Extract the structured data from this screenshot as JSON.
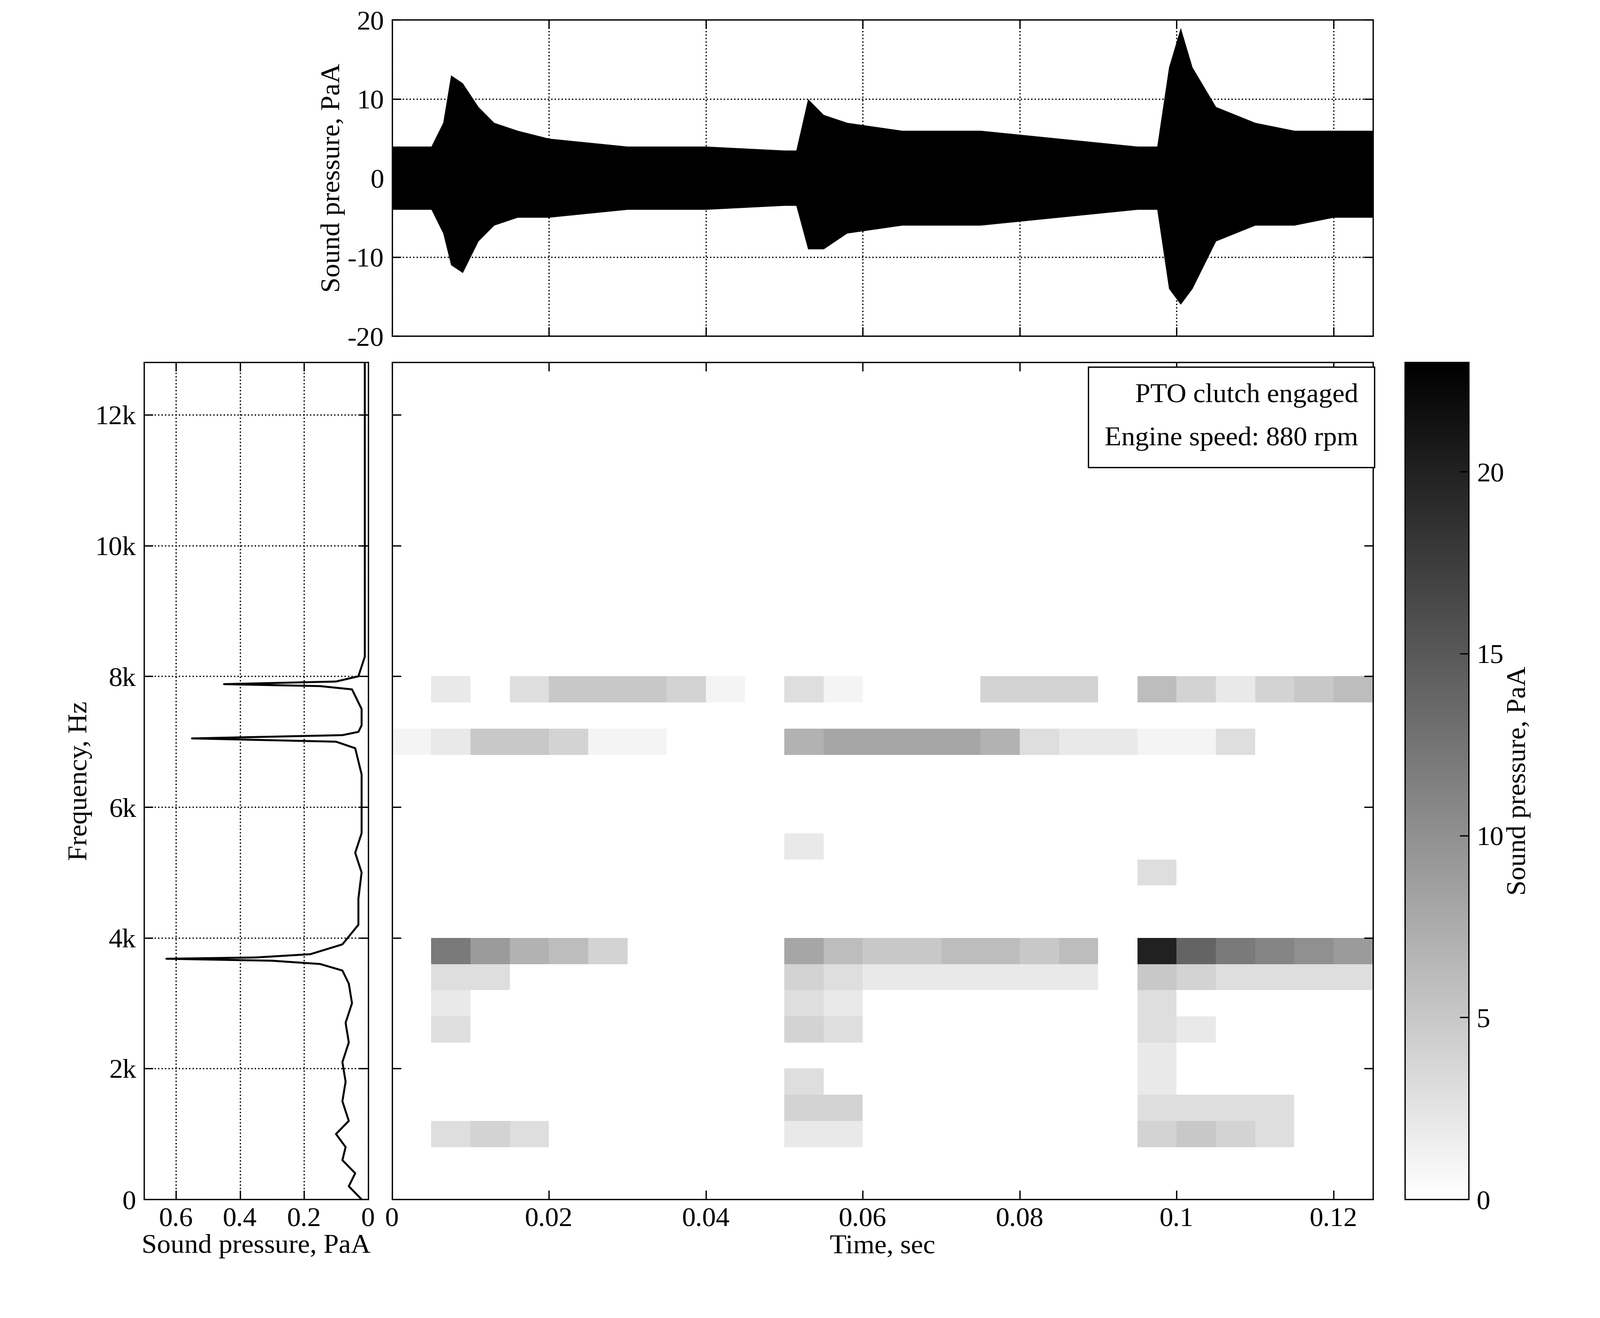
{
  "chart_data": [
    {
      "type": "area",
      "ylabel": "Sound pressure, PaA",
      "x": [
        0,
        0.005,
        0.0065,
        0.0075,
        0.009,
        0.011,
        0.013,
        0.016,
        0.02,
        0.03,
        0.04,
        0.05,
        0.0515,
        0.053,
        0.055,
        0.058,
        0.065,
        0.075,
        0.085,
        0.095,
        0.0975,
        0.099,
        0.1005,
        0.102,
        0.105,
        0.11,
        0.115,
        0.12,
        0.125
      ],
      "upper": [
        4,
        4,
        7,
        13,
        12,
        9,
        7,
        6,
        5,
        4,
        4,
        3.5,
        3.5,
        10,
        8,
        7,
        6,
        6,
        5,
        4,
        4,
        14,
        19,
        14,
        9,
        7,
        6,
        6,
        6
      ],
      "lower": [
        -4,
        -4,
        -7,
        -11,
        -12,
        -8,
        -6,
        -5,
        -5,
        -4,
        -4,
        -3.5,
        -3.5,
        -9,
        -9,
        -7,
        -6,
        -6,
        -5,
        -4,
        -4,
        -14,
        -16,
        -14,
        -8,
        -6,
        -6,
        -5,
        -5
      ],
      "color": "#000000",
      "xlim": [
        0,
        0.125
      ],
      "xticks": [
        0,
        0.02,
        0.04,
        0.06,
        0.08,
        0.1,
        0.12
      ],
      "ylim": [
        -20,
        20
      ],
      "yticks": [
        -20,
        -10,
        0,
        10,
        20
      ],
      "grid": true,
      "tick_labels": "y"
    },
    {
      "type": "line",
      "orientation": "horizontal",
      "xlabel": "Sound pressure, PaA",
      "ylabel": "Frequency, Hz",
      "x": [
        0,
        200,
        400,
        600,
        800,
        1000,
        1200,
        1500,
        1800,
        2100,
        2400,
        2700,
        3000,
        3300,
        3500,
        3600,
        3650,
        3680,
        3700,
        3750,
        3900,
        4200,
        4600,
        5000,
        5300,
        5600,
        6000,
        6500,
        6900,
        7000,
        7050,
        7100,
        7150,
        7250,
        7500,
        7800,
        7850,
        7880,
        7920,
        8000,
        8300,
        9000,
        10000,
        11000,
        12800
      ],
      "values": [
        0.02,
        0.06,
        0.04,
        0.08,
        0.07,
        0.1,
        0.06,
        0.08,
        0.07,
        0.08,
        0.06,
        0.07,
        0.05,
        0.06,
        0.08,
        0.15,
        0.3,
        0.63,
        0.35,
        0.18,
        0.08,
        0.03,
        0.03,
        0.02,
        0.04,
        0.02,
        0.02,
        0.02,
        0.04,
        0.1,
        0.55,
        0.08,
        0.03,
        0.02,
        0.02,
        0.05,
        0.15,
        0.45,
        0.1,
        0.03,
        0.01,
        0.01,
        0.01,
        0.01,
        0.01
      ],
      "color": "#000000",
      "xlim": [
        0.7,
        0
      ],
      "xticks": [
        0.6,
        0.4,
        0.2,
        0
      ],
      "ylim": [
        0,
        12800
      ],
      "yticks": [
        0,
        {
          "value": 2000,
          "label": "2k"
        },
        {
          "value": 4000,
          "label": "4k"
        },
        {
          "value": 6000,
          "label": "6k"
        },
        {
          "value": 8000,
          "label": "8k"
        },
        {
          "value": 10000,
          "label": "10k"
        },
        {
          "value": 12000,
          "label": "12k"
        }
      ],
      "grid": true
    },
    {
      "type": "heatmap",
      "xlabel": "Time, sec",
      "annotations": [
        "PTO clutch engaged",
        "Engine speed: 880 rpm"
      ],
      "time_bins": [
        0,
        0.005,
        0.01,
        0.015,
        0.02,
        0.025,
        0.03,
        0.035,
        0.04,
        0.045,
        0.05,
        0.055,
        0.06,
        0.065,
        0.07,
        0.075,
        0.08,
        0.085,
        0.09,
        0.095,
        0.1,
        0.105,
        0.11,
        0.115,
        0.12,
        0.125
      ],
      "frequency_bins": [
        0,
        400,
        800,
        1200,
        1600,
        2000,
        2400,
        2800,
        3200,
        3600,
        4000,
        4400,
        4800,
        5200,
        5600,
        6000,
        6400,
        6800,
        7200,
        7600,
        8000,
        8400,
        8800,
        9200,
        9600,
        10000,
        10400,
        10800,
        11200,
        11600,
        12000,
        12400,
        12800
      ],
      "cells": [
        [
          0,
          0,
          0,
          0,
          0,
          0,
          0,
          0,
          0,
          0,
          0,
          0,
          0,
          0,
          0,
          0,
          0,
          0,
          0,
          0,
          0,
          0,
          0,
          0,
          0
        ],
        [
          0,
          0,
          0,
          0,
          0,
          0,
          0,
          0,
          0,
          0,
          0,
          0,
          0,
          0,
          0,
          0,
          0,
          0,
          0,
          0,
          0,
          0,
          0,
          0,
          0
        ],
        [
          0,
          3,
          4,
          3,
          0,
          0,
          0,
          0,
          0,
          0,
          2,
          2,
          0,
          0,
          0,
          0,
          0,
          0,
          0,
          4,
          5,
          4,
          3,
          0,
          0
        ],
        [
          0,
          0,
          0,
          0,
          0,
          0,
          0,
          0,
          0,
          0,
          4,
          4,
          0,
          0,
          0,
          0,
          0,
          0,
          0,
          3,
          3,
          3,
          3,
          0,
          0
        ],
        [
          0,
          0,
          0,
          0,
          0,
          0,
          0,
          0,
          0,
          0,
          3,
          0,
          0,
          0,
          0,
          0,
          0,
          0,
          0,
          2,
          0,
          0,
          0,
          0,
          0
        ],
        [
          0,
          0,
          0,
          0,
          0,
          0,
          0,
          0,
          0,
          0,
          0,
          0,
          0,
          0,
          0,
          0,
          0,
          0,
          0,
          2,
          0,
          0,
          0,
          0,
          0
        ],
        [
          0,
          3,
          0,
          0,
          0,
          0,
          0,
          0,
          0,
          0,
          4,
          3,
          0,
          0,
          0,
          0,
          0,
          0,
          0,
          3,
          2,
          0,
          0,
          0,
          0
        ],
        [
          0,
          2,
          0,
          0,
          0,
          0,
          0,
          0,
          0,
          0,
          3,
          2,
          0,
          0,
          0,
          0,
          0,
          0,
          0,
          3,
          0,
          0,
          0,
          0,
          0
        ],
        [
          0,
          3,
          3,
          0,
          0,
          0,
          0,
          0,
          0,
          0,
          4,
          3,
          2,
          2,
          2,
          2,
          2,
          2,
          0,
          5,
          4,
          3,
          3,
          3,
          3
        ],
        [
          0,
          12,
          9,
          7,
          6,
          4,
          0,
          0,
          0,
          0,
          8,
          6,
          5,
          5,
          6,
          6,
          5,
          6,
          0,
          20,
          14,
          12,
          11,
          10,
          9
        ],
        [
          0,
          0,
          0,
          0,
          0,
          0,
          0,
          0,
          0,
          0,
          0,
          0,
          0,
          0,
          0,
          0,
          0,
          0,
          0,
          0,
          0,
          0,
          0,
          0,
          0
        ],
        [
          0,
          0,
          0,
          0,
          0,
          0,
          0,
          0,
          0,
          0,
          0,
          0,
          0,
          0,
          0,
          0,
          0,
          0,
          0,
          0,
          0,
          0,
          0,
          0,
          0
        ],
        [
          0,
          0,
          0,
          0,
          0,
          0,
          0,
          0,
          0,
          0,
          0,
          0,
          0,
          0,
          0,
          0,
          0,
          0,
          0,
          3,
          0,
          0,
          0,
          0,
          0
        ],
        [
          0,
          0,
          0,
          0,
          0,
          0,
          0,
          0,
          0,
          0,
          2,
          0,
          0,
          0,
          0,
          0,
          0,
          0,
          0,
          0,
          0,
          0,
          0,
          0,
          0
        ],
        [
          0,
          0,
          0,
          0,
          0,
          0,
          0,
          0,
          0,
          0,
          0,
          0,
          0,
          0,
          0,
          0,
          0,
          0,
          0,
          0,
          0,
          0,
          0,
          0,
          0
        ],
        [
          0,
          0,
          0,
          0,
          0,
          0,
          0,
          0,
          0,
          0,
          0,
          0,
          0,
          0,
          0,
          0,
          0,
          0,
          0,
          0,
          0,
          0,
          0,
          0,
          0
        ],
        [
          0,
          0,
          0,
          0,
          0,
          0,
          0,
          0,
          0,
          0,
          0,
          0,
          0,
          0,
          0,
          0,
          0,
          0,
          0,
          0,
          0,
          0,
          0,
          0,
          0
        ],
        [
          1,
          2,
          5,
          5,
          4,
          1,
          1,
          0,
          0,
          0,
          7,
          8,
          8,
          8,
          8,
          7,
          3,
          2,
          2,
          1,
          1,
          3,
          0,
          0,
          0
        ],
        [
          0,
          0,
          0,
          0,
          0,
          0,
          0,
          0,
          0,
          0,
          0,
          0,
          0,
          0,
          0,
          0,
          0,
          0,
          0,
          0,
          0,
          0,
          0,
          0,
          0
        ],
        [
          0,
          2,
          0,
          3,
          5,
          5,
          5,
          4,
          1,
          0,
          3,
          1,
          0,
          0,
          0,
          4,
          4,
          4,
          0,
          6,
          4,
          2,
          4,
          5,
          6
        ],
        [
          0,
          0,
          0,
          0,
          0,
          0,
          0,
          0,
          0,
          0,
          0,
          0,
          0,
          0,
          0,
          0,
          0,
          0,
          0,
          0,
          0,
          0,
          0,
          0,
          0
        ],
        [
          0,
          0,
          0,
          0,
          0,
          0,
          0,
          0,
          0,
          0,
          0,
          0,
          0,
          0,
          0,
          0,
          0,
          0,
          0,
          0,
          0,
          0,
          0,
          0,
          0
        ],
        [
          0,
          0,
          0,
          0,
          0,
          0,
          0,
          0,
          0,
          0,
          0,
          0,
          0,
          0,
          0,
          0,
          0,
          0,
          0,
          0,
          0,
          0,
          0,
          0,
          0
        ],
        [
          0,
          0,
          0,
          0,
          0,
          0,
          0,
          0,
          0,
          0,
          0,
          0,
          0,
          0,
          0,
          0,
          0,
          0,
          0,
          0,
          0,
          0,
          0,
          0,
          0
        ],
        [
          0,
          0,
          0,
          0,
          0,
          0,
          0,
          0,
          0,
          0,
          0,
          0,
          0,
          0,
          0,
          0,
          0,
          0,
          0,
          0,
          0,
          0,
          0,
          0,
          0
        ],
        [
          0,
          0,
          0,
          0,
          0,
          0,
          0,
          0,
          0,
          0,
          0,
          0,
          0,
          0,
          0,
          0,
          0,
          0,
          0,
          0,
          0,
          0,
          0,
          0,
          0
        ],
        [
          0,
          0,
          0,
          0,
          0,
          0,
          0,
          0,
          0,
          0,
          0,
          0,
          0,
          0,
          0,
          0,
          0,
          0,
          0,
          0,
          0,
          0,
          0,
          0,
          0
        ],
        [
          0,
          0,
          0,
          0,
          0,
          0,
          0,
          0,
          0,
          0,
          0,
          0,
          0,
          0,
          0,
          0,
          0,
          0,
          0,
          0,
          0,
          0,
          0,
          0,
          0
        ],
        [
          0,
          0,
          0,
          0,
          0,
          0,
          0,
          0,
          0,
          0,
          0,
          0,
          0,
          0,
          0,
          0,
          0,
          0,
          0,
          0,
          0,
          0,
          0,
          0,
          0
        ],
        [
          0,
          0,
          0,
          0,
          0,
          0,
          0,
          0,
          0,
          0,
          0,
          0,
          0,
          0,
          0,
          0,
          0,
          0,
          0,
          0,
          0,
          0,
          0,
          0,
          0
        ],
        [
          0,
          0,
          0,
          0,
          0,
          0,
          0,
          0,
          0,
          0,
          0,
          0,
          0,
          0,
          0,
          0,
          0,
          0,
          0,
          0,
          0,
          0,
          0,
          0,
          0
        ],
        [
          0,
          0,
          0,
          0,
          0,
          0,
          0,
          0,
          0,
          0,
          0,
          0,
          0,
          0,
          0,
          0,
          0,
          0,
          0,
          0,
          0,
          0,
          0,
          0,
          0
        ]
      ],
      "xlim": [
        0,
        0.125
      ],
      "xticks": [
        0,
        0.02,
        0.04,
        0.06,
        0.08,
        0.1,
        0.12
      ],
      "ylim": [
        0,
        12800
      ],
      "yticks": [
        0,
        {
          "value": 2000,
          "label": "2k"
        },
        {
          "value": 4000,
          "label": "4k"
        },
        {
          "value": 6000,
          "label": "6k"
        },
        {
          "value": 8000,
          "label": "8k"
        },
        {
          "value": 10000,
          "label": "10k"
        },
        {
          "value": 12000,
          "label": "12k"
        }
      ],
      "tick_labels": "x",
      "colorbar": {
        "label": "Sound pressure, PaA",
        "range": [
          0,
          23
        ],
        "ticks": [
          0,
          5,
          10,
          15,
          20
        ]
      }
    }
  ]
}
